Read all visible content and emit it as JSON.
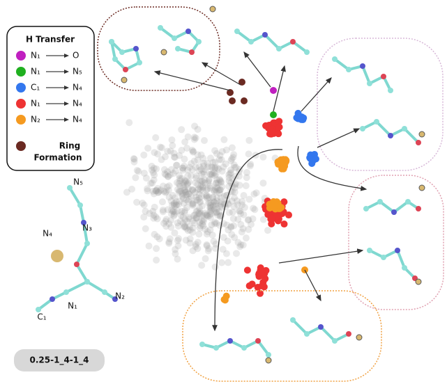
{
  "legend": {
    "title": "H Transfer",
    "items": [
      {
        "from": "N₁",
        "to": "O",
        "color": "#c020c0"
      },
      {
        "from": "N₁",
        "to": "N₅",
        "color": "#20b020"
      },
      {
        "from": "C₁",
        "to": "N₄",
        "color": "#3377ee"
      },
      {
        "from": "N₁",
        "to": "N₄",
        "color": "#ee3333"
      },
      {
        "from": "N₂",
        "to": "N₄",
        "color": "#f59a20"
      }
    ],
    "ring": {
      "label_1": "Ring",
      "label_2": "Formation",
      "color": "#6b2a22"
    }
  },
  "molecule_labels": [
    "N₅",
    "N₃",
    "N₄",
    "N₁",
    "N₂",
    "C₁"
  ],
  "badge": "0.25-1_4-1_4"
}
